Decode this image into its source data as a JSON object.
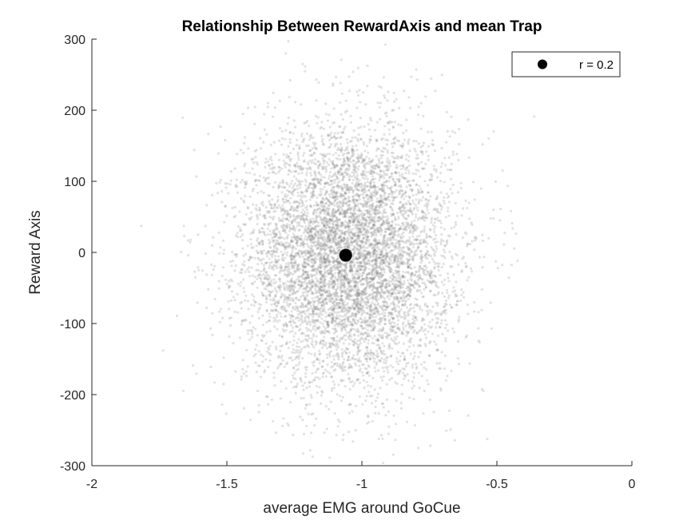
{
  "chart_data": {
    "type": "scatter",
    "title": "Relationship Between RewardAxis and mean Trap",
    "xlabel": "average EMG around GoCue",
    "ylabel": "Reward Axis",
    "xlim": [
      -2,
      0
    ],
    "ylim": [
      -300,
      300
    ],
    "xticks": [
      -2,
      -1.5,
      -1,
      -0.5,
      0
    ],
    "xtick_labels": [
      "-2",
      "-1.5",
      "-1",
      "-0.5",
      "0"
    ],
    "yticks": [
      -300,
      -200,
      -100,
      0,
      100,
      200,
      300
    ],
    "ytick_labels": [
      "-300",
      "-200",
      "-100",
      "0",
      "100",
      "200",
      "300"
    ],
    "grid": false,
    "legend": {
      "entries": [
        "r = 0.2"
      ],
      "placement": "top-right"
    },
    "series": [
      {
        "kind": "cloud",
        "distribution": "gaussian",
        "count": 7000,
        "x_mean": -1.05,
        "x_std": 0.19,
        "y_mean": -5,
        "y_std": 90,
        "color": "#808080",
        "opacity": 0.22
      },
      {
        "name": "r = 0.2",
        "kind": "mean-point",
        "x": -1.06,
        "y": -4,
        "color": "#000000"
      }
    ]
  }
}
